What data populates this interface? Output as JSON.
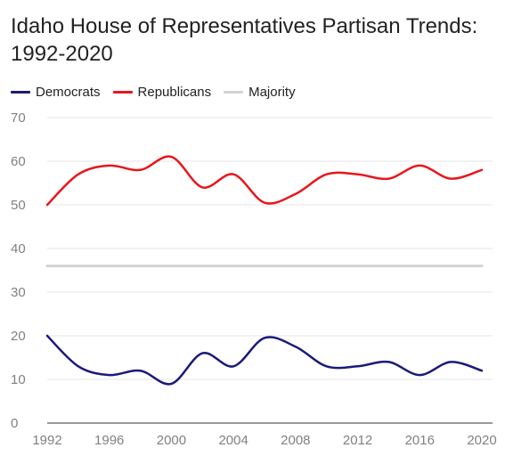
{
  "chart_data": {
    "type": "line",
    "title": "Idaho House of Representatives Partisan Trends: 1992-2020",
    "x": [
      1992,
      1994,
      1996,
      1998,
      2000,
      2002,
      2004,
      2006,
      2008,
      2010,
      2012,
      2014,
      2016,
      2018,
      2020
    ],
    "series": [
      {
        "name": "Democrats",
        "color": "#1a1a7a",
        "values": [
          20,
          13,
          11,
          12,
          9,
          16,
          13,
          19.5,
          17.5,
          13,
          13,
          14,
          11,
          14,
          12
        ]
      },
      {
        "name": "Republicans",
        "color": "#e8161b",
        "values": [
          50,
          57,
          59,
          58,
          61,
          54,
          57,
          50.5,
          52.5,
          57,
          57,
          56,
          59,
          56,
          58
        ]
      },
      {
        "name": "Majority",
        "color": "#d3d3d3",
        "values": [
          36,
          36,
          36,
          36,
          36,
          36,
          36,
          36,
          36,
          36,
          36,
          36,
          36,
          36,
          36
        ]
      }
    ],
    "ylim": [
      0,
      70
    ],
    "yticks": [
      "0",
      "10",
      "20",
      "30",
      "40",
      "50",
      "60",
      "70"
    ],
    "xticks": [
      "1992",
      "1996",
      "2000",
      "2004",
      "2008",
      "2012",
      "2016",
      "2020"
    ],
    "xlim": [
      1992,
      2020
    ],
    "grid": true,
    "legend": "top-left"
  }
}
